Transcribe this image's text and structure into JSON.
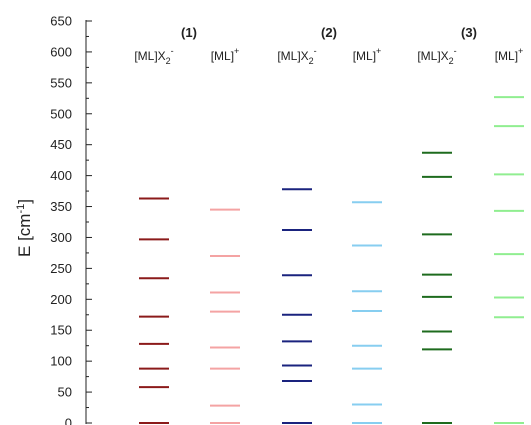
{
  "chart_data": {
    "type": "energy-level diagram",
    "ylabel": "E [cm",
    "ylabel_sup": "-1",
    "ylabel_close": "]",
    "ylim": [
      0,
      650
    ],
    "yticks": [
      0,
      50,
      100,
      150,
      200,
      250,
      300,
      350,
      400,
      450,
      500,
      550,
      600,
      650
    ],
    "groups": [
      "(1)",
      "(2)",
      "(3)"
    ],
    "series": [
      {
        "group": 0,
        "base": "[ML]X",
        "sub": "2",
        "sup": "-",
        "color": "#8b1a1a",
        "values": [
          0,
          58,
          88,
          128,
          172,
          234,
          297,
          363
        ]
      },
      {
        "group": 0,
        "base": "[ML]",
        "sub": "",
        "sup": "+",
        "color": "#f4a3a3",
        "values": [
          0,
          28,
          88,
          122,
          180,
          211,
          270,
          345
        ]
      },
      {
        "group": 1,
        "base": "[ML]X",
        "sub": "2",
        "sup": "-",
        "color": "#1a237e",
        "values": [
          0,
          68,
          93,
          132,
          175,
          239,
          312,
          378
        ]
      },
      {
        "group": 1,
        "base": "[ML]",
        "sub": "",
        "sup": "+",
        "color": "#87cef0",
        "values": [
          0,
          30,
          88,
          125,
          181,
          213,
          287,
          357
        ]
      },
      {
        "group": 2,
        "base": "[ML]X",
        "sub": "2",
        "sup": "-",
        "color": "#1e6b1e",
        "values": [
          0,
          119,
          148,
          204,
          240,
          305,
          398,
          437
        ]
      },
      {
        "group": 2,
        "base": "[ML]",
        "sub": "",
        "sup": "+",
        "color": "#90ee90",
        "values": [
          0,
          171,
          203,
          273,
          343,
          402,
          480,
          527
        ]
      }
    ]
  }
}
